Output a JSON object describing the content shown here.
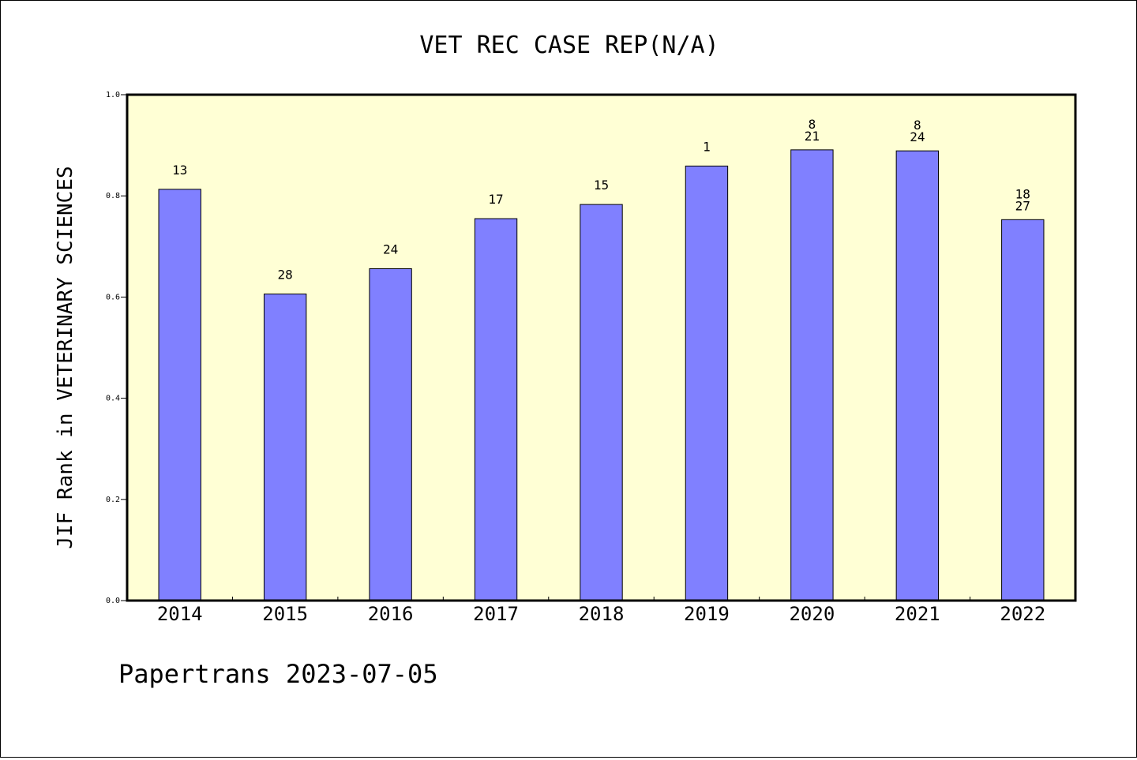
{
  "chart_data": {
    "type": "bar",
    "title": "VET REC CASE REP(N/A)",
    "xlabel": "",
    "ylabel": "JIF Rank in VETERINARY SCIENCES",
    "categories": [
      "2014",
      "2015",
      "2016",
      "2017",
      "2018",
      "2019",
      "2020",
      "2021",
      "2022"
    ],
    "values": [
      0.813,
      0.606,
      0.656,
      0.755,
      0.783,
      0.859,
      0.891,
      0.889,
      0.753
    ],
    "bar_labels": [
      [
        "13"
      ],
      [
        "28"
      ],
      [
        "24"
      ],
      [
        "17"
      ],
      [
        "15"
      ],
      [
        "1"
      ],
      [
        "8",
        "21"
      ],
      [
        "8",
        "24"
      ],
      [
        "18",
        "27"
      ]
    ],
    "ylim": [
      0,
      1.0
    ],
    "yticks": [
      "0.0",
      "0.2",
      "0.4",
      "0.6",
      "0.8",
      "1.0"
    ],
    "grid": false,
    "colors": {
      "bar_fill": "#8080ff",
      "plot_background": "#ffffd5",
      "axis": "#000000"
    }
  },
  "footer": "Papertrans 2023-07-05"
}
